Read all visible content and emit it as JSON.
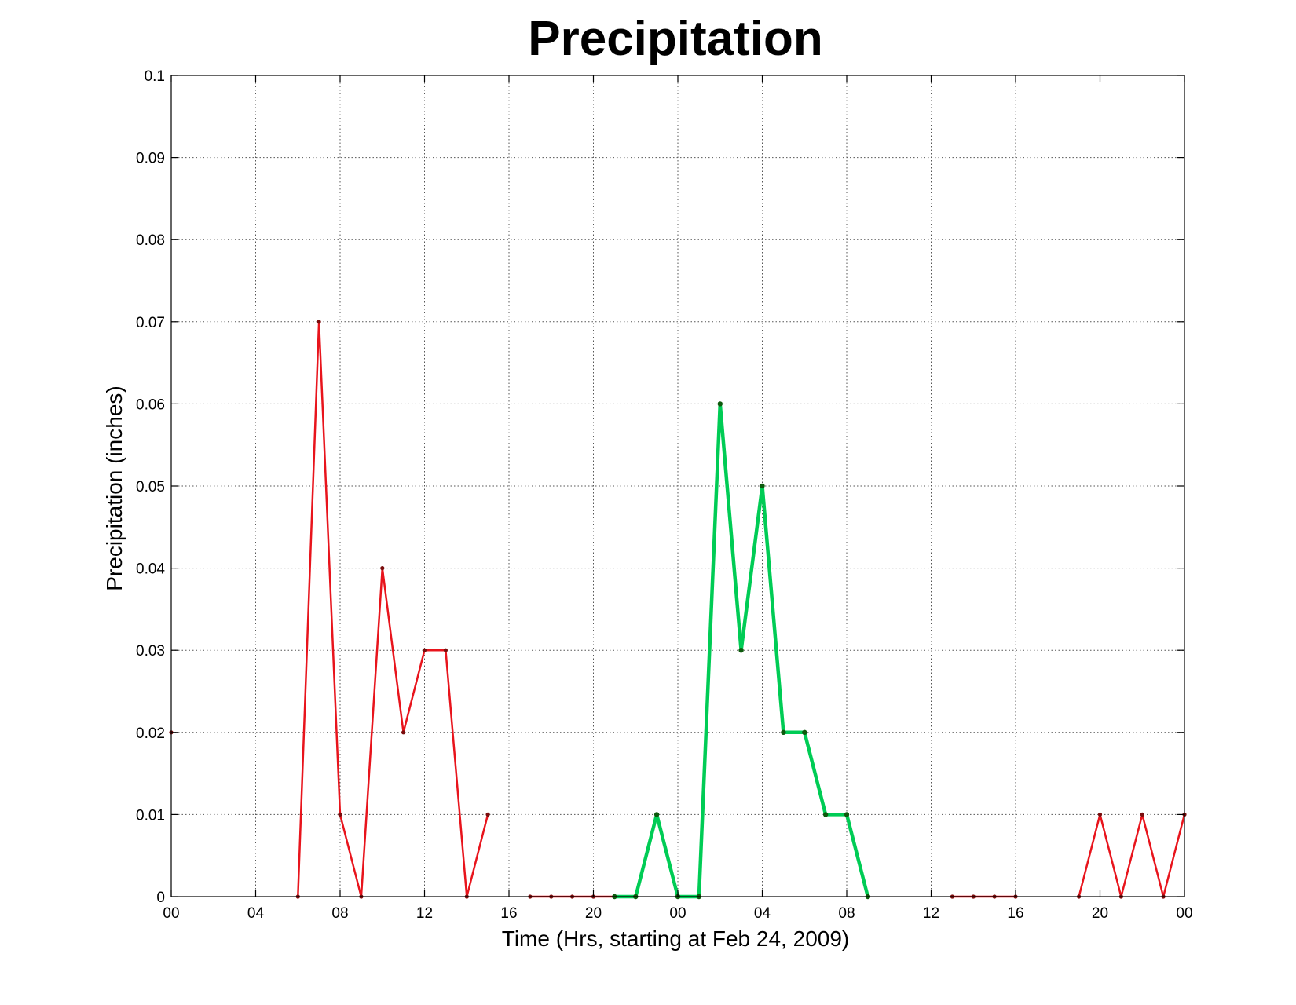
{
  "chart_data": {
    "type": "line",
    "title": "Precipitation",
    "xlabel": "Time (Hrs, starting at Feb 24, 2009)",
    "ylabel": "Precipitation (inches)",
    "xlim": [
      0,
      48
    ],
    "ylim": [
      0,
      0.1
    ],
    "grid": true,
    "x_tick_values": [
      0,
      4,
      8,
      12,
      16,
      20,
      24,
      28,
      32,
      36,
      40,
      44,
      48
    ],
    "x_tick_labels": [
      "00",
      "04",
      "08",
      "12",
      "16",
      "20",
      "00",
      "04",
      "08",
      "12",
      "16",
      "20",
      "00"
    ],
    "y_tick_values": [
      0,
      0.01,
      0.02,
      0.03,
      0.04,
      0.05,
      0.06,
      0.07,
      0.08,
      0.09,
      0.1
    ],
    "y_tick_labels": [
      "0",
      "0.01",
      "0.02",
      "0.03",
      "0.04",
      "0.05",
      "0.06",
      "0.07",
      "0.08",
      "0.09",
      "0.1"
    ],
    "series": [
      {
        "color": "#e8141c",
        "marker_color": "#7a0d0d",
        "values": [
          [
            0,
            0.02
          ],
          null,
          [
            6,
            0
          ],
          [
            7,
            0.07
          ],
          [
            8,
            0.01
          ],
          [
            9,
            0
          ],
          [
            10,
            0.04
          ],
          [
            11,
            0.02
          ],
          [
            12,
            0.03
          ],
          [
            13,
            0.03
          ],
          [
            14,
            0
          ],
          [
            15,
            0.01
          ],
          null,
          [
            17,
            0
          ],
          [
            18,
            0
          ],
          [
            19,
            0
          ],
          [
            20,
            0
          ],
          [
            21,
            0
          ],
          [
            22,
            0
          ],
          null,
          [
            37,
            0
          ],
          [
            38,
            0
          ],
          [
            39,
            0
          ],
          [
            40,
            0
          ],
          null,
          [
            43,
            0
          ],
          [
            44,
            0.01
          ],
          [
            45,
            0
          ],
          [
            46,
            0.01
          ],
          [
            47,
            0
          ],
          [
            48,
            0.01
          ]
        ]
      },
      {
        "color": "#00cc55",
        "marker_color": "#0d5a0d",
        "values": [
          [
            21,
            0
          ],
          [
            22,
            0
          ],
          [
            23,
            0.01
          ],
          [
            24,
            0
          ],
          [
            25,
            0
          ],
          [
            26,
            0.06
          ],
          [
            27,
            0.03
          ],
          [
            28,
            0.05
          ],
          [
            29,
            0.02
          ],
          [
            30,
            0.02
          ],
          [
            31,
            0.01
          ],
          [
            32,
            0.01
          ],
          [
            33,
            0
          ]
        ]
      }
    ]
  }
}
